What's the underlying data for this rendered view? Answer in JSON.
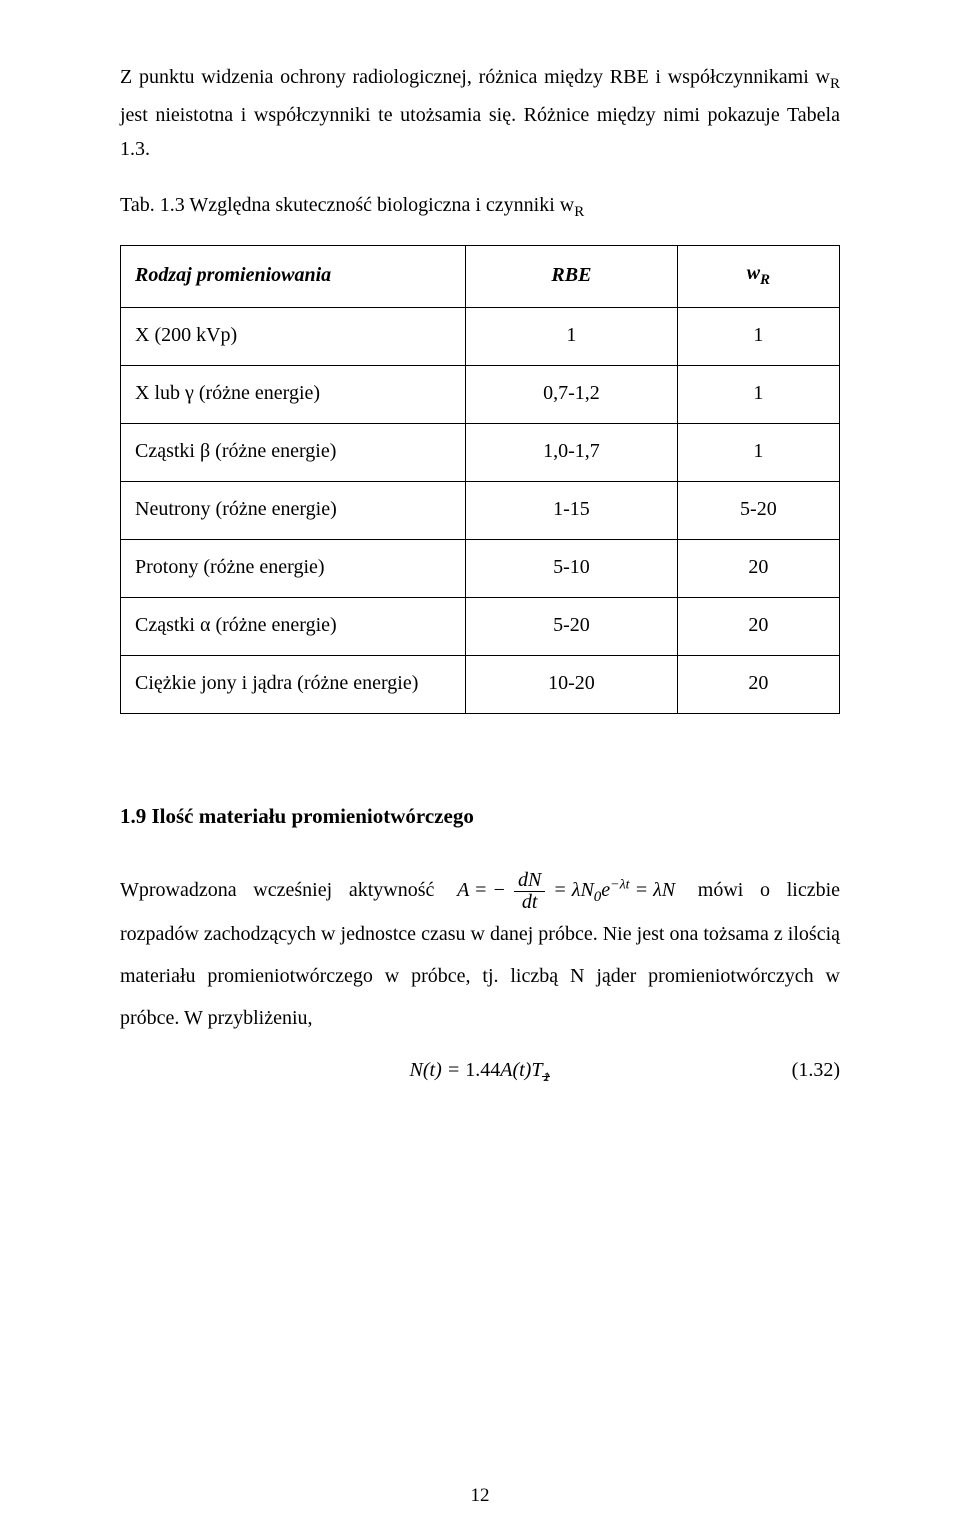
{
  "intro_paragraph": "Z punktu widzenia ochrony radiologicznej, różnica między RBE i współczynnikami wR jest nieistotna i współczynniki te utożsamia się. Różnice między nimi pokazuje Tabela 1.3.",
  "table_caption": "Tab. 1.3 Względna skuteczność biologiczna i czynniki wR",
  "table": {
    "headers": [
      "Rodzaj promieniowania",
      "RBE",
      "wR"
    ],
    "rows": [
      {
        "label": "X (200 kVp)",
        "rbe": "1",
        "wr": "1"
      },
      {
        "label": "X lub γ (różne energie)",
        "rbe": "0,7-1,2",
        "wr": "1"
      },
      {
        "label": "Cząstki β (różne energie)",
        "rbe": "1,0-1,7",
        "wr": "1"
      },
      {
        "label": "Neutrony (różne energie)",
        "rbe": "1-15",
        "wr": "5-20"
      },
      {
        "label": "Protony (różne energie)",
        "rbe": "5-10",
        "wr": "20"
      },
      {
        "label": "Cząstki α (różne energie)",
        "rbe": "5-20",
        "wr": "20"
      },
      {
        "label": "Ciężkie jony i jądra (różne energie)",
        "rbe": "10-20",
        "wr": "20"
      }
    ],
    "border_color": "#000000",
    "cell_fontsize": 20,
    "header_style": "bold-italic"
  },
  "section_title": "1.9 Ilość materiału promieniotwórczego",
  "formula_para_before": "Wprowadzona wcześniej aktywność ",
  "formula_para_after_eq": " mówi o liczbie rozpadów zachodzących w jednostce czasu w danej próbce. Nie jest ona tożsama z ilością materiału promieniotwórczego w próbce, tj. liczbą N jąder promieniotwórczych w próbce. W przybliżeniu,",
  "equation_number": "(1.32)",
  "page_number": "12",
  "colors": {
    "text": "#000000",
    "background": "#ffffff"
  },
  "fontsize": 20,
  "font_family": "Times New Roman"
}
